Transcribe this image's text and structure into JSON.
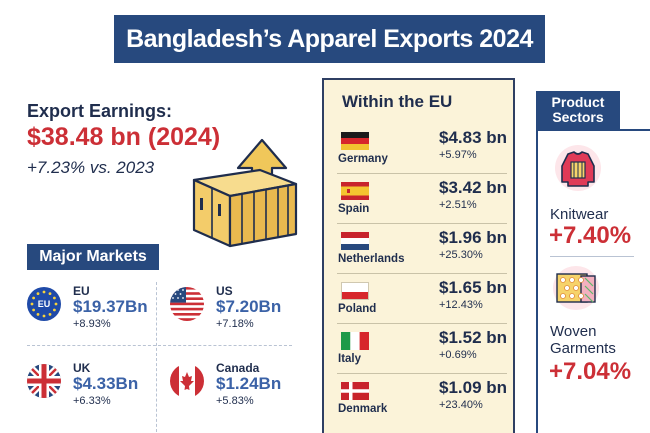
{
  "title": "Bangladesh’s Apparel  Exports 2024",
  "earnings": {
    "label": "Export Earnings:",
    "value": "$38.48 bn (2024)",
    "change": "+7.23% vs. 2023"
  },
  "major_markets": {
    "label": "Major Markets",
    "items": [
      {
        "name": "EU",
        "value": "$19.37Bn",
        "change": "+8.93%",
        "flag_text": "EU"
      },
      {
        "name": "US",
        "value": "$7.20Bn",
        "change": "+7.18%"
      },
      {
        "name": "UK",
        "value": "$4.33Bn",
        "change": "+6.33%"
      },
      {
        "name": "Canada",
        "value": "$1.24Bn",
        "change": "+5.83%"
      }
    ]
  },
  "eu": {
    "title": "Within the EU",
    "rows": [
      {
        "country": "Germany",
        "value": "$4.83 bn",
        "change": "+5.97%"
      },
      {
        "country": "Spain",
        "value": "$3.42 bn",
        "change": "+2.51%"
      },
      {
        "country": "Netherlands",
        "value": "$1.96 bn",
        "change": "+25.30%"
      },
      {
        "country": "Poland",
        "value": "$1.65 bn",
        "change": "+12.43%"
      },
      {
        "country": "Italy",
        "value": "$1.52 bn",
        "change": "+0.69%"
      },
      {
        "country": "Denmark",
        "value": "$1.09 bn",
        "change": "+23.40%"
      }
    ]
  },
  "sectors": {
    "label_line1": "Product",
    "label_line2": "Sectors",
    "items": [
      {
        "name": "Knitwear",
        "change": "+7.40%"
      },
      {
        "name_line1": "Woven",
        "name_line2": "Garments",
        "change": "+7.04%"
      }
    ]
  },
  "colors": {
    "navy": "#27497e",
    "red": "#cc2f36",
    "blue_value": "#3b62a7",
    "panel_bg": "#fbf3d9",
    "container": "#f3cc6a",
    "arrow": "#f0c75a"
  },
  "icons": [
    "shipping-container-icon",
    "up-arrow-icon",
    "eu-flag-icon",
    "us-flag-icon",
    "uk-flag-icon",
    "canada-flag-icon",
    "sweater-icon",
    "woven-fabric-icon"
  ],
  "chart_data": {
    "type": "table",
    "title": "Bangladesh’s Apparel  Exports 2024",
    "total": {
      "value_bn": 38.48,
      "year": 2024,
      "growth_pct": 7.23
    },
    "major_markets": [
      {
        "market": "EU",
        "value_bn": 19.37,
        "growth_pct": 8.93
      },
      {
        "market": "US",
        "value_bn": 7.2,
        "growth_pct": 7.18
      },
      {
        "market": "UK",
        "value_bn": 4.33,
        "growth_pct": 6.33
      },
      {
        "market": "Canada",
        "value_bn": 1.24,
        "growth_pct": 5.83
      }
    ],
    "eu_markets": [
      {
        "country": "Germany",
        "value_bn": 4.83,
        "growth_pct": 5.97
      },
      {
        "country": "Spain",
        "value_bn": 3.42,
        "growth_pct": 2.51
      },
      {
        "country": "Netherlands",
        "value_bn": 1.96,
        "growth_pct": 25.3
      },
      {
        "country": "Poland",
        "value_bn": 1.65,
        "growth_pct": 12.43
      },
      {
        "country": "Italy",
        "value_bn": 1.52,
        "growth_pct": 0.69
      },
      {
        "country": "Denmark",
        "value_bn": 1.09,
        "growth_pct": 23.4
      }
    ],
    "sectors": [
      {
        "sector": "Knitwear",
        "growth_pct": 7.4
      },
      {
        "sector": "Woven Garments",
        "growth_pct": 7.04
      }
    ]
  }
}
